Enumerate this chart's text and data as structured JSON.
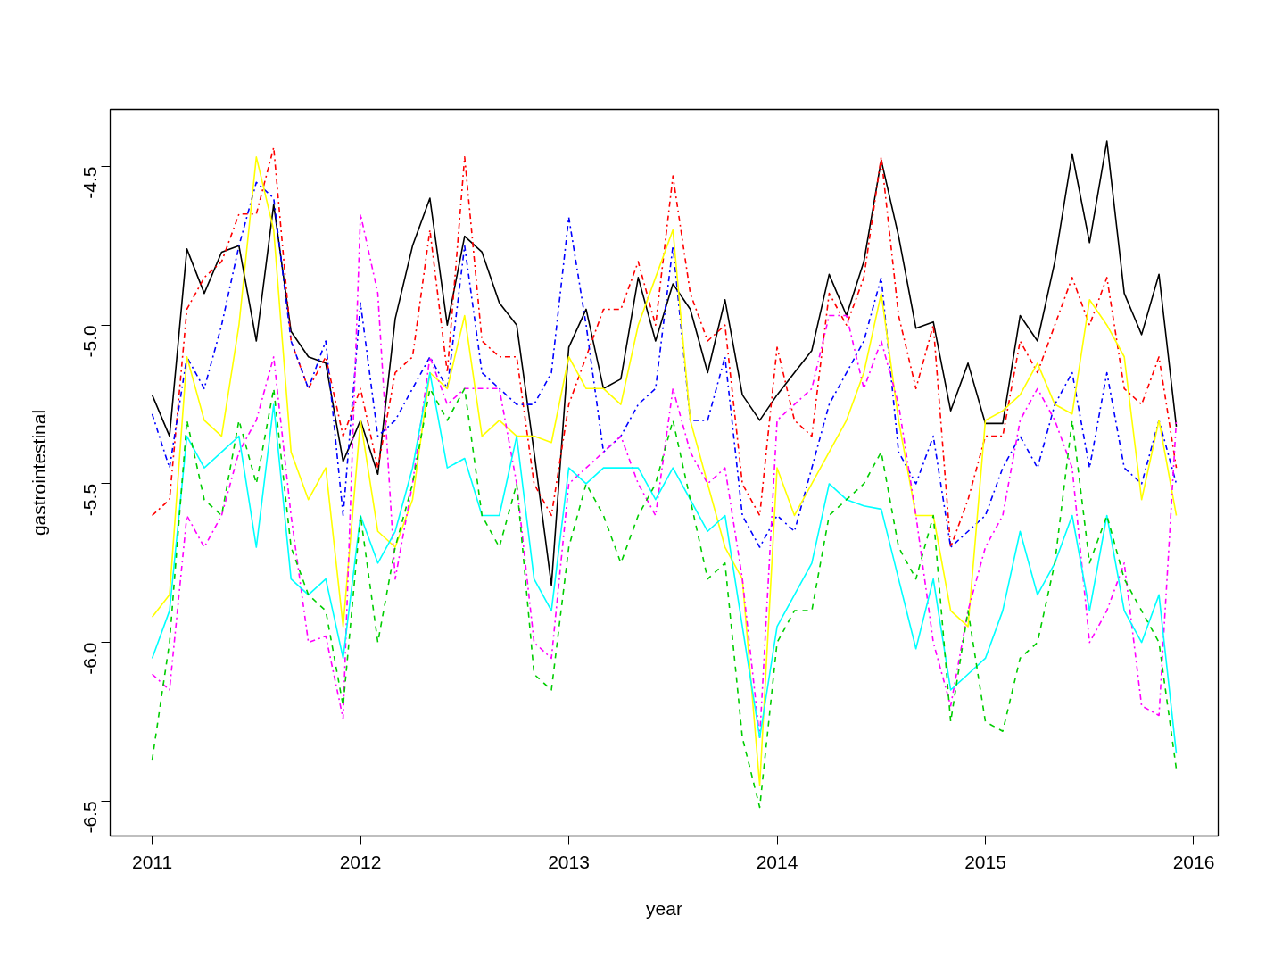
{
  "chart_data": {
    "type": "line",
    "xlabel": "year",
    "ylabel": "gastrointestinal",
    "x": [
      "2011-01",
      "2011-02",
      "2011-03",
      "2011-04",
      "2011-05",
      "2011-06",
      "2011-07",
      "2011-08",
      "2011-09",
      "2011-10",
      "2011-11",
      "2011-12",
      "2012-01",
      "2012-02",
      "2012-03",
      "2012-04",
      "2012-05",
      "2012-06",
      "2012-07",
      "2012-08",
      "2012-09",
      "2012-10",
      "2012-11",
      "2012-12",
      "2013-01",
      "2013-02",
      "2013-03",
      "2013-04",
      "2013-05",
      "2013-06",
      "2013-07",
      "2013-08",
      "2013-09",
      "2013-10",
      "2013-11",
      "2013-12",
      "2014-01",
      "2014-02",
      "2014-03",
      "2014-04",
      "2014-05",
      "2014-06",
      "2014-07",
      "2014-08",
      "2014-09",
      "2014-10",
      "2014-11",
      "2014-12",
      "2015-01",
      "2015-02",
      "2015-03",
      "2015-04",
      "2015-05",
      "2015-06",
      "2015-07",
      "2015-08",
      "2015-09",
      "2015-10",
      "2015-11",
      "2015-12"
    ],
    "xlim": [
      "2010-10-19",
      "2016-02-13"
    ],
    "xticks": [
      "2011",
      "2012",
      "2013",
      "2014",
      "2015",
      "2016"
    ],
    "ylim": [
      -6.61,
      -4.32
    ],
    "yticks": [
      -6.5,
      {
        "value": -6,
        "label": "-6.0"
      },
      -5.5,
      {
        "value": -5,
        "label": "-5.0"
      },
      -4.5
    ],
    "series": [
      {
        "color": "#000000",
        "line_style": "solid",
        "values": [
          -5.22,
          -5.35,
          -4.76,
          -4.9,
          -4.77,
          -4.75,
          -5.05,
          -4.62,
          -5.02,
          -5.1,
          -5.12,
          -5.43,
          -5.3,
          -5.47,
          -4.98,
          -4.75,
          -4.6,
          -5.0,
          -4.72,
          -4.77,
          -4.93,
          -5.0,
          -5.4,
          -5.82,
          -5.07,
          -4.95,
          -5.2,
          -5.17,
          -4.85,
          -5.05,
          -4.87,
          -4.95,
          -5.15,
          -4.92,
          -5.22,
          -5.3,
          -5.22,
          -5.15,
          -5.08,
          -4.84,
          -4.97,
          -4.8,
          -4.48,
          -4.72,
          -5.01,
          -4.99,
          -5.27,
          -5.12,
          -5.31,
          -5.31,
          -4.97,
          -5.05,
          -4.8,
          -4.46,
          -4.74,
          -4.42,
          -4.9,
          -5.03,
          -4.84,
          -5.32
        ]
      },
      {
        "color": "#ff0000",
        "line_style": "dashdot",
        "values": [
          -5.6,
          -5.55,
          -4.95,
          -4.85,
          -4.8,
          -4.65,
          -4.65,
          -4.44,
          -5.05,
          -5.2,
          -5.1,
          -5.35,
          -5.2,
          -5.45,
          -5.15,
          -5.1,
          -4.7,
          -5.15,
          -4.47,
          -5.05,
          -5.1,
          -5.1,
          -5.5,
          -5.6,
          -5.25,
          -5.1,
          -4.95,
          -4.95,
          -4.8,
          -5.0,
          -4.53,
          -4.9,
          -5.05,
          -5.0,
          -5.5,
          -5.6,
          -5.07,
          -5.3,
          -5.35,
          -4.9,
          -5.0,
          -4.85,
          -4.47,
          -4.97,
          -5.2,
          -5.0,
          -5.7,
          -5.55,
          -5.35,
          -5.35,
          -5.05,
          -5.15,
          -5.0,
          -4.85,
          -5.0,
          -4.85,
          -5.2,
          -5.25,
          -5.1,
          -5.45
        ]
      },
      {
        "color": "#0000ff",
        "line_style": "dashdot",
        "values": [
          -5.28,
          -5.45,
          -5.1,
          -5.2,
          -5.0,
          -4.75,
          -4.55,
          -4.6,
          -5.05,
          -5.2,
          -5.05,
          -5.6,
          -4.93,
          -5.35,
          -5.3,
          -5.2,
          -5.1,
          -5.2,
          -4.75,
          -5.15,
          -5.2,
          -5.25,
          -5.25,
          -5.15,
          -4.66,
          -5.0,
          -5.4,
          -5.35,
          -5.25,
          -5.2,
          -4.75,
          -5.3,
          -5.3,
          -5.1,
          -5.6,
          -5.7,
          -5.6,
          -5.65,
          -5.45,
          -5.25,
          -5.15,
          -5.05,
          -4.85,
          -5.4,
          -5.5,
          -5.35,
          -5.7,
          -5.65,
          -5.6,
          -5.45,
          -5.35,
          -5.45,
          -5.25,
          -5.15,
          -5.45,
          -5.15,
          -5.45,
          -5.5,
          -5.3,
          -5.5
        ]
      },
      {
        "color": "#ffff00",
        "line_style": "solid",
        "values": [
          -5.92,
          -5.85,
          -5.1,
          -5.3,
          -5.35,
          -5.0,
          -4.47,
          -4.7,
          -5.4,
          -5.55,
          -5.45,
          -5.95,
          -5.3,
          -5.65,
          -5.7,
          -5.55,
          -5.15,
          -5.2,
          -4.97,
          -5.35,
          -5.3,
          -5.35,
          -5.35,
          -5.37,
          -5.1,
          -5.2,
          -5.2,
          -5.25,
          -5.0,
          -4.85,
          -4.7,
          -5.3,
          -5.5,
          -5.7,
          -5.8,
          -6.45,
          -5.45,
          -5.6,
          -5.5,
          -5.4,
          -5.3,
          -5.15,
          -4.9,
          -5.3,
          -5.6,
          -5.6,
          -5.9,
          -5.95,
          -5.3,
          -5.27,
          -5.22,
          -5.12,
          -5.25,
          -5.28,
          -4.92,
          -5.0,
          -5.1,
          -5.55,
          -5.3,
          -5.6
        ]
      },
      {
        "color": "#ff00ff",
        "line_style": "dashdot",
        "values": [
          -6.1,
          -6.15,
          -5.6,
          -5.7,
          -5.6,
          -5.4,
          -5.3,
          -5.1,
          -5.6,
          -6.0,
          -5.98,
          -6.24,
          -4.65,
          -4.9,
          -5.8,
          -5.5,
          -5.1,
          -5.25,
          -5.2,
          -5.2,
          -5.2,
          -5.5,
          -6.0,
          -6.05,
          -5.5,
          -5.45,
          -5.4,
          -5.35,
          -5.5,
          -5.6,
          -5.2,
          -5.4,
          -5.5,
          -5.45,
          -5.8,
          -6.3,
          -5.3,
          -5.25,
          -5.2,
          -4.97,
          -4.97,
          -5.2,
          -5.05,
          -5.25,
          -5.6,
          -6.0,
          -6.2,
          -5.9,
          -5.7,
          -5.6,
          -5.3,
          -5.2,
          -5.3,
          -5.45,
          -6.0,
          -5.9,
          -5.75,
          -6.2,
          -6.23,
          -5.3
        ]
      },
      {
        "color": "#00ffff",
        "line_style": "solid",
        "values": [
          -6.05,
          -5.9,
          -5.35,
          -5.45,
          -5.4,
          -5.35,
          -5.7,
          -5.25,
          -5.8,
          -5.85,
          -5.8,
          -6.05,
          -5.6,
          -5.75,
          -5.65,
          -5.45,
          -5.15,
          -5.45,
          -5.42,
          -5.6,
          -5.6,
          -5.35,
          -5.8,
          -5.9,
          -5.45,
          -5.5,
          -5.45,
          -5.45,
          -5.45,
          -5.55,
          -5.45,
          -5.55,
          -5.65,
          -5.6,
          -5.95,
          -6.3,
          -5.95,
          -5.85,
          -5.75,
          -5.5,
          -5.55,
          -5.57,
          -5.58,
          -5.8,
          -6.02,
          -5.8,
          -6.15,
          -6.1,
          -6.05,
          -5.9,
          -5.65,
          -5.85,
          -5.75,
          -5.6,
          -5.9,
          -5.6,
          -5.9,
          -6.0,
          -5.85,
          -6.35
        ]
      },
      {
        "color": "#00cd00",
        "line_style": "dashed",
        "values": [
          -6.37,
          -6.0,
          -5.3,
          -5.55,
          -5.6,
          -5.3,
          -5.5,
          -5.2,
          -5.7,
          -5.85,
          -5.9,
          -6.2,
          -5.6,
          -6.0,
          -5.7,
          -5.5,
          -5.2,
          -5.3,
          -5.2,
          -5.6,
          -5.7,
          -5.5,
          -6.1,
          -6.15,
          -5.7,
          -5.5,
          -5.6,
          -5.75,
          -5.6,
          -5.5,
          -5.3,
          -5.55,
          -5.8,
          -5.75,
          -6.3,
          -6.52,
          -6.0,
          -5.9,
          -5.9,
          -5.6,
          -5.55,
          -5.5,
          -5.4,
          -5.7,
          -5.8,
          -5.6,
          -6.25,
          -5.9,
          -6.25,
          -6.28,
          -6.05,
          -6.0,
          -5.75,
          -5.3,
          -5.75,
          -5.6,
          -5.8,
          -5.9,
          -6.0,
          -6.4
        ]
      }
    ]
  }
}
